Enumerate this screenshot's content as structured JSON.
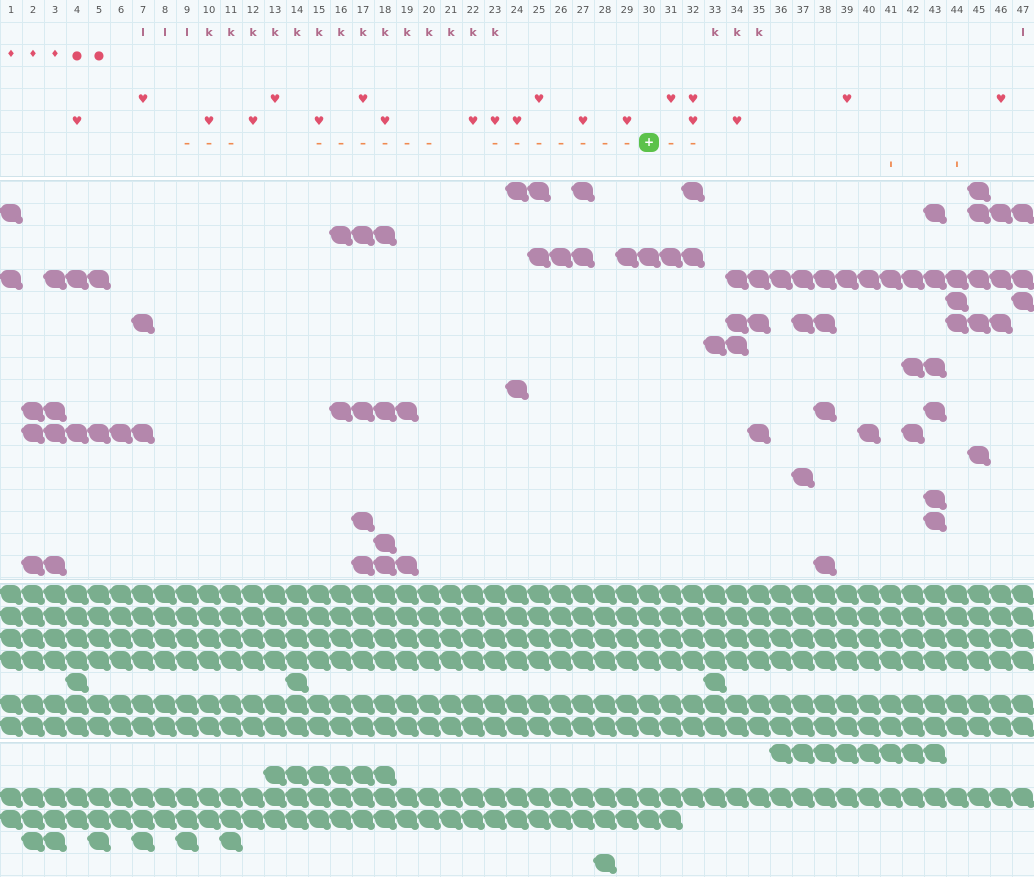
{
  "columns": [
    "1",
    "2",
    "3",
    "4",
    "5",
    "6",
    "7",
    "8",
    "9",
    "10",
    "11",
    "12",
    "13",
    "14",
    "15",
    "16",
    "17",
    "18",
    "19",
    "20",
    "21",
    "22",
    "23",
    "24",
    "25",
    "26",
    "27",
    "28",
    "29",
    "30",
    "31",
    "32",
    "33",
    "34",
    "35",
    "36",
    "37",
    "38",
    "39",
    "40",
    "41",
    "42",
    "43",
    "44",
    "45",
    "46",
    "47"
  ],
  "colors": {
    "purple_tile": "#b487ac",
    "green_tile": "#7aae8e",
    "heart": "#e0506c",
    "dash": "#f08a50",
    "player": "#5cc24a"
  },
  "top_markers": [
    {
      "r": 1,
      "cols": [
        7,
        8,
        9
      ],
      "symbol": "l",
      "icon": "l-marker-icon"
    },
    {
      "r": 1,
      "cols": [
        10,
        11,
        12,
        13,
        14,
        15,
        16,
        17,
        18,
        19,
        20,
        21,
        22,
        23,
        33,
        34,
        35
      ],
      "symbol": "k",
      "icon": "k-marker-icon"
    },
    {
      "r": 1,
      "cols": [
        47
      ],
      "symbol": "l",
      "icon": "l-marker-icon"
    },
    {
      "r": 2,
      "cols": [
        1,
        2,
        3
      ],
      "symbol": "♦",
      "icon": "drop-icon"
    },
    {
      "r": 2,
      "cols": [
        4,
        5
      ],
      "symbol": "●",
      "icon": "dot-icon"
    },
    {
      "r": 4,
      "cols": [
        7,
        13,
        17,
        25,
        31,
        32,
        39,
        46
      ],
      "symbol": "♥",
      "icon": "heart-icon"
    },
    {
      "r": 5,
      "cols": [
        4,
        10,
        12,
        15,
        18,
        22,
        23,
        24,
        27,
        29,
        32,
        34
      ],
      "symbol": "♥",
      "icon": "heart-icon"
    },
    {
      "r": 6,
      "cols": [
        9,
        10,
        11,
        15,
        16,
        17,
        18,
        19,
        20,
        23,
        24,
        25,
        26,
        27,
        28,
        29,
        31,
        32
      ],
      "symbol": "–",
      "icon": "dash-icon"
    },
    {
      "r": 8,
      "cols": [
        41,
        44
      ],
      "symbol": "ı",
      "icon": "tick-icon"
    }
  ],
  "player": {
    "r": 6,
    "c": 30,
    "symbol": "+",
    "icon": "player-icon"
  },
  "purple_tiles": [
    [
      9,
      24
    ],
    [
      9,
      25
    ],
    [
      9,
      27
    ],
    [
      9,
      32
    ],
    [
      9,
      45
    ],
    [
      10,
      1
    ],
    [
      10,
      43
    ],
    [
      10,
      45
    ],
    [
      10,
      46
    ],
    [
      10,
      47
    ],
    [
      11,
      16
    ],
    [
      11,
      17
    ],
    [
      11,
      18
    ],
    [
      12,
      25
    ],
    [
      12,
      26
    ],
    [
      12,
      27
    ],
    [
      12,
      29
    ],
    [
      12,
      30
    ],
    [
      12,
      31
    ],
    [
      12,
      32
    ],
    [
      13,
      1
    ],
    [
      13,
      3
    ],
    [
      13,
      4
    ],
    [
      13,
      5
    ],
    [
      13,
      34
    ],
    [
      13,
      35
    ],
    [
      13,
      36
    ],
    [
      13,
      37
    ],
    [
      13,
      38
    ],
    [
      13,
      39
    ],
    [
      13,
      40
    ],
    [
      13,
      41
    ],
    [
      13,
      42
    ],
    [
      13,
      43
    ],
    [
      13,
      44
    ],
    [
      13,
      45
    ],
    [
      13,
      46
    ],
    [
      13,
      47
    ],
    [
      14,
      44
    ],
    [
      14,
      47
    ],
    [
      15,
      7
    ],
    [
      15,
      34
    ],
    [
      15,
      35
    ],
    [
      15,
      37
    ],
    [
      15,
      38
    ],
    [
      15,
      44
    ],
    [
      15,
      45
    ],
    [
      15,
      46
    ],
    [
      16,
      33
    ],
    [
      16,
      34
    ],
    [
      17,
      42
    ],
    [
      17,
      43
    ],
    [
      18,
      24
    ],
    [
      19,
      2
    ],
    [
      19,
      3
    ],
    [
      19,
      16
    ],
    [
      19,
      17
    ],
    [
      19,
      18
    ],
    [
      19,
      19
    ],
    [
      19,
      38
    ],
    [
      19,
      43
    ],
    [
      20,
      2
    ],
    [
      20,
      3
    ],
    [
      20,
      4
    ],
    [
      20,
      5
    ],
    [
      20,
      6
    ],
    [
      20,
      7
    ],
    [
      20,
      35
    ],
    [
      20,
      40
    ],
    [
      20,
      42
    ],
    [
      21,
      45
    ],
    [
      22,
      37
    ],
    [
      23,
      43
    ],
    [
      24,
      17
    ],
    [
      24,
      43
    ],
    [
      25,
      18
    ],
    [
      26,
      2
    ],
    [
      26,
      3
    ],
    [
      26,
      17
    ],
    [
      26,
      18
    ],
    [
      26,
      19
    ],
    [
      26,
      38
    ]
  ],
  "green_rows_full": [
    27,
    28,
    29,
    30,
    32,
    33,
    36
  ],
  "green_tiles": [
    [
      31,
      4
    ],
    [
      31,
      14
    ],
    [
      31,
      33
    ],
    [
      34,
      36
    ],
    [
      34,
      37
    ],
    [
      34,
      38
    ],
    [
      34,
      39
    ],
    [
      34,
      40
    ],
    [
      34,
      41
    ],
    [
      34,
      42
    ],
    [
      34,
      43
    ],
    [
      35,
      13
    ],
    [
      35,
      14
    ],
    [
      35,
      15
    ],
    [
      35,
      16
    ],
    [
      35,
      17
    ],
    [
      35,
      18
    ],
    [
      37,
      1
    ],
    [
      37,
      2
    ],
    [
      37,
      3
    ],
    [
      37,
      4
    ],
    [
      37,
      5
    ],
    [
      37,
      6
    ],
    [
      37,
      7
    ],
    [
      37,
      8
    ],
    [
      37,
      9
    ],
    [
      37,
      10
    ],
    [
      37,
      11
    ],
    [
      37,
      12
    ],
    [
      37,
      13
    ],
    [
      37,
      14
    ],
    [
      37,
      15
    ],
    [
      37,
      16
    ],
    [
      37,
      17
    ],
    [
      37,
      18
    ],
    [
      37,
      19
    ],
    [
      37,
      20
    ],
    [
      37,
      21
    ],
    [
      37,
      22
    ],
    [
      37,
      23
    ],
    [
      37,
      24
    ],
    [
      37,
      25
    ],
    [
      37,
      26
    ],
    [
      37,
      27
    ],
    [
      37,
      28
    ],
    [
      37,
      29
    ],
    [
      37,
      30
    ],
    [
      37,
      31
    ],
    [
      38,
      2
    ],
    [
      38,
      3
    ],
    [
      38,
      5
    ],
    [
      38,
      7
    ],
    [
      38,
      9
    ],
    [
      38,
      11
    ],
    [
      39,
      28
    ]
  ]
}
